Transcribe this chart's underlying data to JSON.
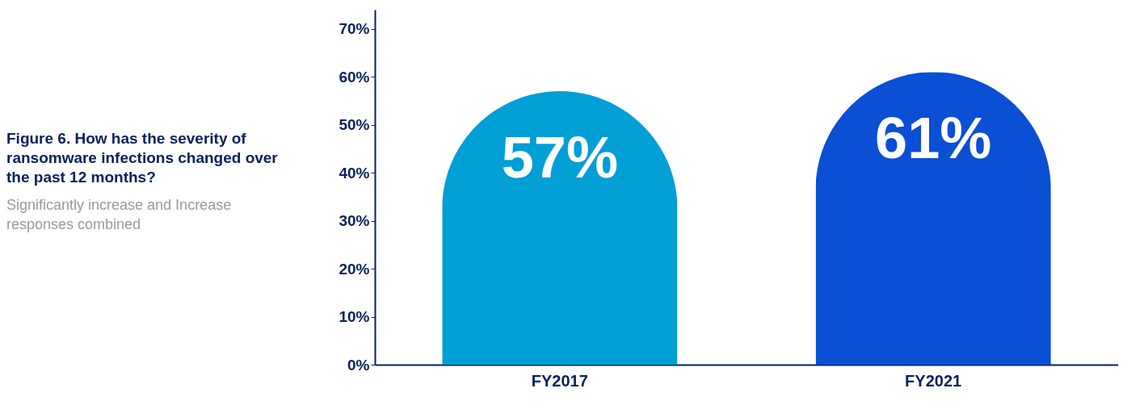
{
  "chart_data": {
    "type": "bar",
    "title": "Figure 6. How has the severity of ransomware infections changed over the past 12 months?",
    "subtitle": "Significantly increase and Increase responses combined",
    "categories": [
      "FY2017",
      "FY2021"
    ],
    "values": [
      57,
      61
    ],
    "colors": [
      "#009fd6",
      "#0a4fd4"
    ],
    "value_labels": [
      "57%",
      "61%"
    ],
    "ylim": [
      0,
      74
    ],
    "yticks": [
      {
        "value": 0,
        "label": "0%"
      },
      {
        "value": 10,
        "label": "10%"
      },
      {
        "value": 20,
        "label": "20%"
      },
      {
        "value": 30,
        "label": "30%"
      },
      {
        "value": 40,
        "label": "40%"
      },
      {
        "value": 50,
        "label": "50%"
      },
      {
        "value": 60,
        "label": "60%"
      },
      {
        "value": 70,
        "label": "70%"
      }
    ]
  }
}
